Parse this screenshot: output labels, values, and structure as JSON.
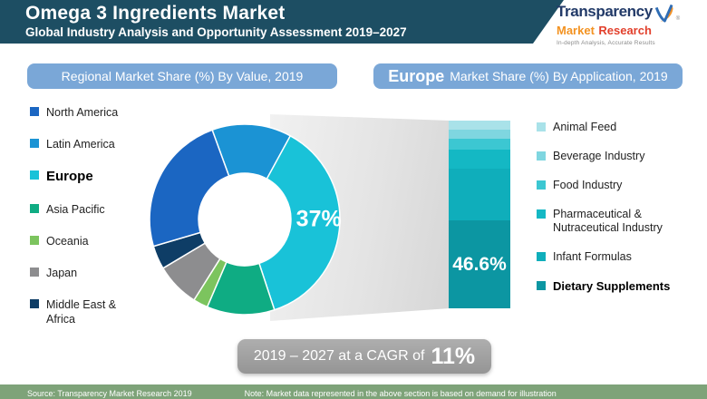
{
  "header": {
    "title": "Omega 3 Ingredients Market",
    "subtitle": "Global Industry Analysis and Opportunity Assessment 2019–2027"
  },
  "logo": {
    "brand": "Transparency",
    "word1": "Market",
    "word2": "Research",
    "registered": "®",
    "tagline": "In-depth Analysis, Accurate Results"
  },
  "panels": {
    "left_title": "Regional Market Share (%) By Value, 2019",
    "right_title_emphasis": "Europe",
    "right_title_rest": "Market Share (%) By Application, 2019"
  },
  "cagr": {
    "prefix": "2019 – 2027 at a CAGR of",
    "value": "11%"
  },
  "footer": {
    "source": "Source: Transparency Market Research 2019",
    "note": "Note: Market data represented in the above section is based on demand for illustration"
  },
  "palette": {
    "header_teal": "#1d4e63",
    "pill_blue": "#7aa7d7",
    "cagr_gray": "#9e9e9e",
    "footer_green": "#7ea379",
    "logo_navy": "#223a68",
    "logo_orange": "#f39322",
    "logo_red": "#e2402c"
  },
  "chart_data": [
    {
      "type": "pie",
      "variant": "donut",
      "title": "Regional Market Share (%) By Value, 2019",
      "unit": "%",
      "start_angle_deg": -20,
      "slices": [
        {
          "label": "Latin America",
          "value": 13.5,
          "color": "#1b93d4"
        },
        {
          "label": "Europe",
          "value": 37,
          "color": "#19c2d8",
          "callout": "37%"
        },
        {
          "label": "Asia Pacific",
          "value": 11.5,
          "color": "#0fac83"
        },
        {
          "label": "Oceania",
          "value": 2.5,
          "color": "#7cc45e"
        },
        {
          "label": "Japan",
          "value": 7.5,
          "color": "#8d8d8f"
        },
        {
          "label": "Middle East & Africa",
          "value": 4,
          "color": "#0e3d66"
        },
        {
          "label": "North America",
          "value": 24,
          "color": "#1b66c2"
        }
      ],
      "legend_order": [
        "North America",
        "Latin America",
        "Europe",
        "Asia Pacific",
        "Oceania",
        "Japan",
        "Middle East & Africa"
      ],
      "highlighted": "Europe",
      "legend_position": "left"
    },
    {
      "type": "bar",
      "variant": "stacked-vertical",
      "title": "Europe Market Share (%) By Application, 2019",
      "unit": "%",
      "segments_top_to_bottom": [
        {
          "label": "Animal Feed",
          "value": 4.8,
          "color": "#a9e2e9"
        },
        {
          "label": "Beverage Industry",
          "value": 4.8,
          "color": "#7fd6e0"
        },
        {
          "label": "Food Industry",
          "value": 6.0,
          "color": "#3cc7d2"
        },
        {
          "label": "Pharmaceutical & Nutraceutical Industry",
          "value": 9.8,
          "color": "#14b8c4"
        },
        {
          "label": "Infant Formulas",
          "value": 28.0,
          "color": "#0faebb"
        },
        {
          "label": "Dietary Supplements",
          "value": 46.6,
          "color": "#0c96a2",
          "callout": "46.6%"
        }
      ],
      "highlighted": "Dietary Supplements",
      "legend_position": "right"
    }
  ]
}
